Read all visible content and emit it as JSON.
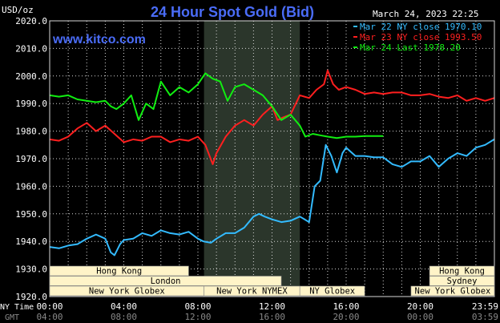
{
  "header": {
    "unit_label": "USD/oz",
    "title": "24 Hour Spot Gold (Bid)",
    "date": "March 24, 2023 22:25",
    "brand": "www.kitco.com"
  },
  "colors": {
    "background": "#000000",
    "grid": "#d8d8d8",
    "text": "#ffffff",
    "title": "#4a6cf7",
    "brand": "#4a6cf7",
    "shade": "#2b362b",
    "mar22": "#33bbff",
    "mar23": "#ff1f1f",
    "mar24": "#11ee11",
    "session_fill": "#fff4c8",
    "session_text": "#000000"
  },
  "chart_data": {
    "type": "line",
    "title": "24 Hour Spot Gold (Bid)",
    "ylabel": "USD/oz",
    "xlabel": "",
    "ylim": [
      1920,
      2020
    ],
    "xlim_hours": [
      0,
      24
    ],
    "y_ticks": [
      "1920.0",
      "1930.0",
      "1940.0",
      "1950.0",
      "1960.0",
      "1970.0",
      "1980.0",
      "1990.0",
      "2000.0",
      "2010.0",
      "2020.0"
    ],
    "x_ticks_ny": [
      "00:00",
      "04:00",
      "08:00",
      "12:00",
      "16:00",
      "20:00",
      "23:59"
    ],
    "x_ticks_gmt": [
      "04:00",
      "08:00",
      "12:00",
      "16:00",
      "20:00",
      "00:00",
      "03:59"
    ],
    "x_axis_rows": [
      "NY Time",
      "GMT"
    ],
    "nymex_shade_hours": [
      8.33,
      13.5
    ],
    "grid": true,
    "legend_position": "top-right",
    "legend": [
      {
        "label": "Mar 22 NY close 1970.10",
        "color_key": "mar22"
      },
      {
        "label": "Mar 23 NY close 1993.50",
        "color_key": "mar23"
      },
      {
        "label": "Mar 24 Last 1978.20",
        "color_key": "mar24"
      }
    ],
    "series": [
      {
        "name": "Mar 22 NY close 1970.10",
        "color_key": "mar22",
        "x": [
          0,
          0.5,
          1,
          1.5,
          2,
          2.5,
          3,
          3.3,
          3.5,
          3.8,
          4,
          4.5,
          5,
          5.5,
          6,
          6.5,
          7,
          7.5,
          8,
          8.3,
          8.7,
          9,
          9.5,
          10,
          10.5,
          11,
          11.3,
          11.6,
          12,
          12.5,
          13,
          13.5,
          14,
          14.3,
          14.6,
          14.9,
          15.2,
          15.5,
          15.8,
          16,
          16.5,
          17,
          17.5,
          18,
          18.5,
          19,
          19.5,
          20,
          20.5,
          21,
          21.5,
          22,
          22.5,
          23,
          23.5,
          23.99
        ],
        "values": [
          1938,
          1937.5,
          1938.5,
          1939,
          1941,
          1942.5,
          1941,
          1936,
          1935,
          1939,
          1940.5,
          1941,
          1943,
          1942,
          1944,
          1943,
          1942.5,
          1943.5,
          1941,
          1940,
          1939.5,
          1941,
          1943,
          1943,
          1945,
          1949,
          1950,
          1949,
          1948,
          1947,
          1947.5,
          1949,
          1947,
          1960,
          1962,
          1975,
          1971,
          1965,
          1972,
          1974,
          1971,
          1971,
          1970.5,
          1970.5,
          1968,
          1967,
          1969,
          1969,
          1971,
          1967,
          1970,
          1972,
          1971,
          1974,
          1975,
          1977
        ]
      },
      {
        "name": "Mar 23 NY close 1993.50",
        "color_key": "mar23",
        "x": [
          0,
          0.5,
          1,
          1.5,
          2,
          2.5,
          3,
          3.5,
          4,
          4.5,
          5,
          5.5,
          6,
          6.5,
          7,
          7.5,
          8,
          8.4,
          8.8,
          9,
          9.5,
          10,
          10.5,
          11,
          11.5,
          12,
          12.3,
          12.6,
          13,
          13.5,
          14,
          14.4,
          14.8,
          15,
          15.3,
          15.6,
          16,
          16.5,
          17,
          17.5,
          18,
          18.5,
          19,
          19.5,
          20,
          20.5,
          21,
          21.5,
          22,
          22.5,
          23,
          23.5,
          23.99
        ],
        "values": [
          1977,
          1976.5,
          1978,
          1981,
          1983,
          1980,
          1982,
          1979,
          1976,
          1977,
          1976.5,
          1978,
          1978,
          1976,
          1977,
          1976.5,
          1978,
          1975,
          1968,
          1972,
          1978,
          1982,
          1984,
          1982,
          1986,
          1989,
          1984,
          1985,
          1986,
          1993,
          1992,
          1995,
          1997,
          2002,
          1997,
          1995,
          1996,
          1995,
          1993.5,
          1994,
          1993.5,
          1994,
          1994,
          1993,
          1993,
          1993.5,
          1992.5,
          1992,
          1993,
          1991,
          1992,
          1991,
          1992
        ]
      },
      {
        "name": "Mar 24 Last 1978.20",
        "color_key": "mar24",
        "x": [
          0,
          0.5,
          1,
          1.5,
          2,
          2.5,
          3,
          3.3,
          3.6,
          4,
          4.4,
          4.8,
          5.2,
          5.6,
          6,
          6.5,
          7,
          7.5,
          8,
          8.4,
          8.8,
          9.2,
          9.6,
          10,
          10.5,
          11,
          11.5,
          12,
          12.5,
          13,
          13.5,
          13.8,
          14.2,
          14.6,
          15,
          15.5,
          16,
          16.5,
          17,
          17.5,
          18
        ],
        "values": [
          1993,
          1992.5,
          1993,
          1991.5,
          1991,
          1990.5,
          1991,
          1989,
          1988,
          1990,
          1993,
          1984,
          1990,
          1988,
          1998,
          1993,
          1996,
          1994,
          1997,
          2001,
          1999,
          1998,
          1991,
          1996,
          1997,
          1995,
          1993,
          1989,
          1984,
          1986,
          1982,
          1978,
          1979,
          1978.5,
          1978,
          1977.5,
          1978,
          1978,
          1978.2,
          1978.2,
          1978.2
        ]
      }
    ]
  },
  "sessions": [
    {
      "label": "Hong Kong",
      "start": 0,
      "end": 7.5,
      "row": 0
    },
    {
      "label": "Hong Kong",
      "start": 20.5,
      "end": 24,
      "row": 0
    },
    {
      "label": "London",
      "start": 0,
      "end": 12.5,
      "row": 1
    },
    {
      "label": "Sydney",
      "start": 20.5,
      "end": 24,
      "row": 1
    },
    {
      "label": "New York Globex",
      "start": 0,
      "end": 8.33,
      "row": 2
    },
    {
      "label": "New York NYMEX",
      "start": 8.33,
      "end": 13.5,
      "row": 2
    },
    {
      "label": "NY Globex",
      "start": 13.5,
      "end": 17,
      "row": 2
    },
    {
      "label": "New York Globex",
      "start": 19.5,
      "end": 24,
      "row": 2
    }
  ]
}
